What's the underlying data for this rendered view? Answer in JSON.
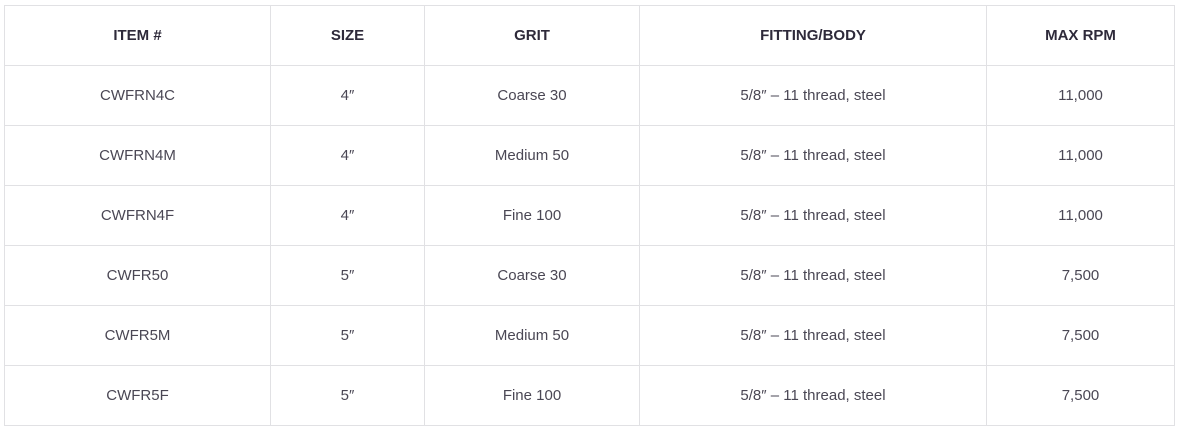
{
  "table": {
    "headers": [
      "ITEM #",
      "SIZE",
      "GRIT",
      "FITTING/BODY",
      "MAX RPM"
    ],
    "rows": [
      [
        "CWFRN4C",
        "4″",
        "Coarse 30",
        "5/8″ – 11 thread, steel",
        "11,000"
      ],
      [
        "CWFRN4M",
        "4″",
        "Medium 50",
        "5/8″ – 11 thread, steel",
        "11,000"
      ],
      [
        "CWFRN4F",
        "4″",
        "Fine 100",
        "5/8″ – 11 thread, steel",
        "11,000"
      ],
      [
        "CWFR50",
        "5″",
        "Coarse 30",
        "5/8″ – 11 thread, steel",
        "7,500"
      ],
      [
        "CWFR5M",
        "5″",
        "Medium 50",
        "5/8″ – 11 thread, steel",
        "7,500"
      ],
      [
        "CWFR5F",
        "5″",
        "Fine 100",
        "5/8″ – 11 thread, steel",
        "7,500"
      ]
    ]
  }
}
